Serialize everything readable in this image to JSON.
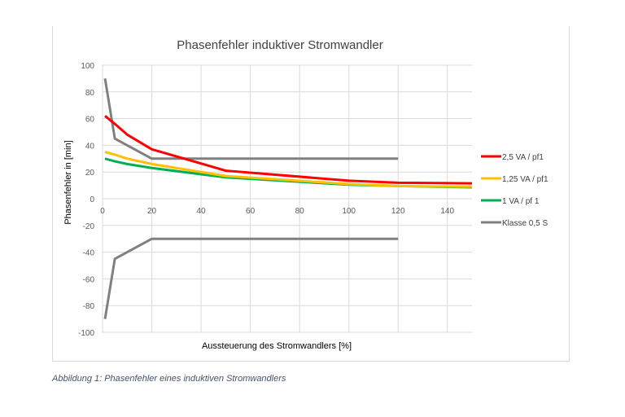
{
  "chart_data": {
    "type": "line",
    "title": "Phasenfehler induktiver Stromwandler",
    "xlabel": "Aussteuerung des Stromwandlers [%]",
    "ylabel": "Phasenfehler in [min]",
    "xlim": [
      0,
      150
    ],
    "ylim": [
      -100,
      100
    ],
    "xticks": [
      "0",
      "20",
      "40",
      "60",
      "80",
      "100",
      "120",
      "140"
    ],
    "yticks": [
      "100",
      "80",
      "60",
      "40",
      "20",
      "0",
      "-20",
      "-40",
      "-60",
      "-80",
      "-100"
    ],
    "grid": true,
    "legend": "right",
    "series": [
      {
        "name": "2,5 VA / pf1",
        "color": "#ff0000",
        "x": [
          1,
          5,
          10,
          20,
          50,
          100,
          120,
          150
        ],
        "y": [
          62,
          56,
          48,
          37,
          21,
          13.5,
          12,
          11.5
        ]
      },
      {
        "name": "1,25 VA / pf1",
        "color": "#ffc000",
        "x": [
          1,
          5,
          10,
          20,
          50,
          100,
          120,
          150
        ],
        "y": [
          35,
          33,
          30,
          26,
          17,
          11,
          9.5,
          9
        ]
      },
      {
        "name": "1 VA / pf 1",
        "color": "#00b050",
        "x": [
          1,
          5,
          10,
          20,
          50,
          100,
          120,
          150
        ],
        "y": [
          30,
          28,
          26,
          23,
          16,
          10.5,
          9.5,
          8.5
        ]
      },
      {
        "name": "Klasse 0,5 S",
        "color": "#808080",
        "x": [
          1,
          5,
          20,
          120
        ],
        "y": [
          90,
          45,
          30,
          30
        ],
        "x2": [
          1,
          5,
          20,
          120
        ],
        "y2": [
          -90,
          -45,
          -30,
          -30
        ]
      }
    ]
  },
  "caption": "Abbildung 1: Phasenfehler eines induktiven Stromwandlers"
}
